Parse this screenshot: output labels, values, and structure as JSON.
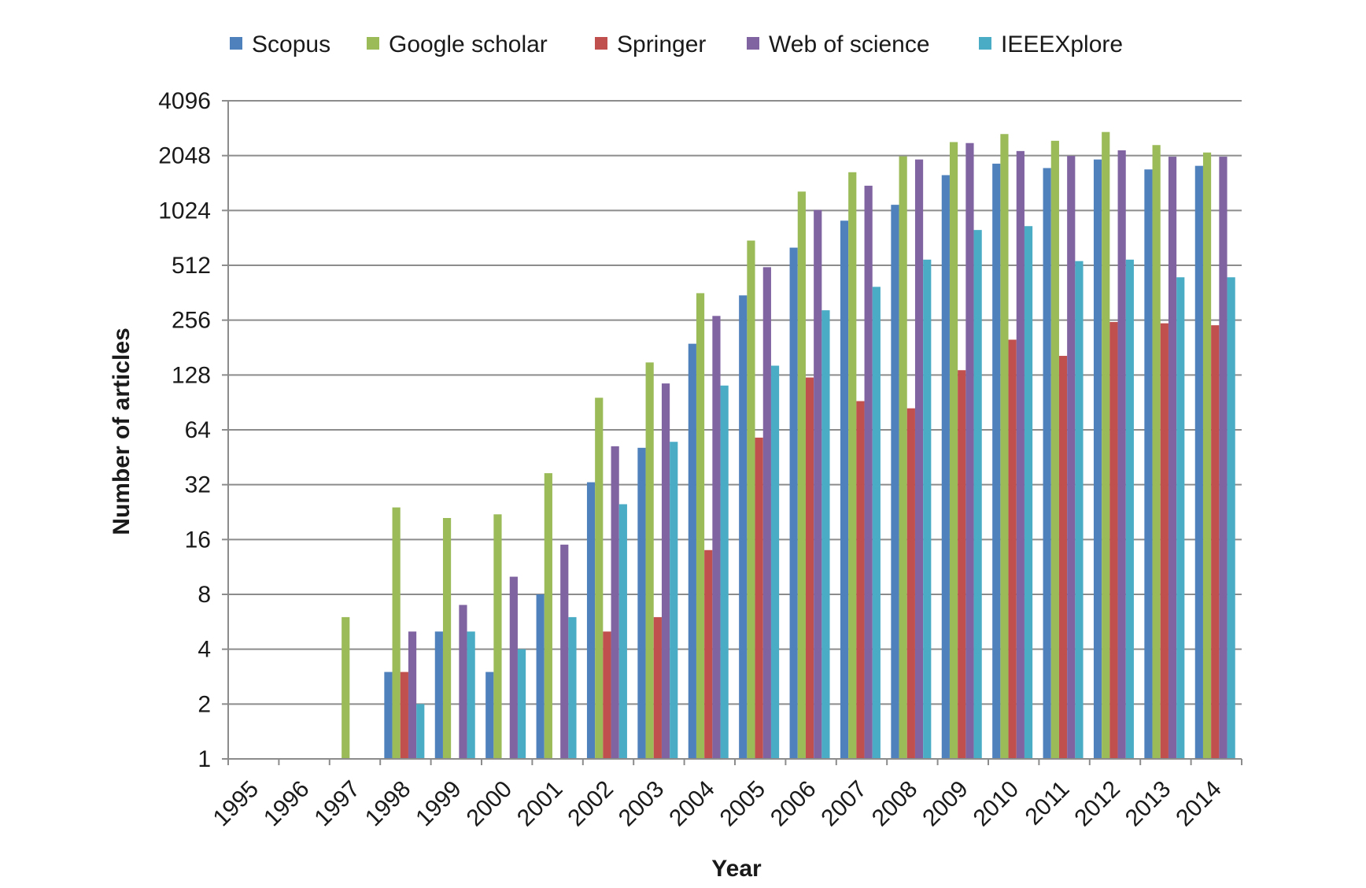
{
  "chart_data": {
    "type": "bar",
    "title": "",
    "xlabel": "Year",
    "ylabel": "Number of articles",
    "y_scale": "log2",
    "ylim": [
      1,
      4096
    ],
    "y_ticks": [
      "1",
      "2",
      "4",
      "8",
      "16",
      "32",
      "64",
      "128",
      "256",
      "512",
      "1024",
      "2048",
      "4096"
    ],
    "grid": "horizontal",
    "legend_position": "top",
    "categories": [
      "1995",
      "1996",
      "1997",
      "1998",
      "1999",
      "2000",
      "2001",
      "2002",
      "2003",
      "2004",
      "2005",
      "2006",
      "2007",
      "2008",
      "2009",
      "2010",
      "2011",
      "2012",
      "2013",
      "2014"
    ],
    "series": [
      {
        "name": "Scopus",
        "color": "#4f81bd",
        "values": [
          null,
          null,
          null,
          3,
          5,
          3,
          8,
          33,
          51,
          190,
          350,
          640,
          900,
          1100,
          1600,
          1850,
          1750,
          1950,
          1720,
          1800
        ]
      },
      {
        "name": "Google scholar",
        "color": "#9bbb59",
        "values": [
          null,
          null,
          6,
          24,
          21,
          22,
          37,
          96,
          150,
          360,
          700,
          1300,
          1660,
          2030,
          2430,
          2690,
          2470,
          2760,
          2340,
          2130
        ]
      },
      {
        "name": "Springer",
        "color": "#c0504d",
        "values": [
          null,
          null,
          null,
          3,
          null,
          null,
          null,
          5,
          6,
          14,
          58,
          124,
          92,
          84,
          136,
          200,
          163,
          250,
          246,
          240
        ]
      },
      {
        "name": "Web of science",
        "color": "#8064a2",
        "values": [
          null,
          null,
          null,
          5,
          7,
          10,
          15,
          52,
          115,
          270,
          500,
          1030,
          1400,
          1950,
          2400,
          2170,
          2040,
          2190,
          2020,
          2020
        ]
      },
      {
        "name": "IEEEXplore",
        "color": "#4bacc6",
        "values": [
          null,
          null,
          null,
          2,
          5,
          4,
          6,
          25,
          55,
          112,
          144,
          290,
          390,
          550,
          800,
          840,
          540,
          550,
          440,
          440
        ]
      }
    ]
  }
}
